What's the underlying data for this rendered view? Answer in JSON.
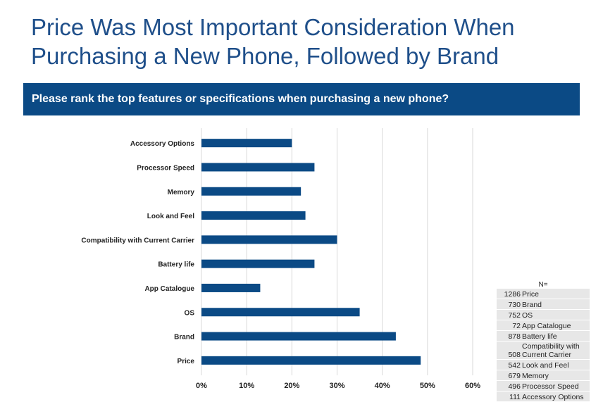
{
  "title": "Price Was Most Important Consideration When Purchasing a New Phone, Followed by Brand",
  "question": "Please rank the top features or specifications when purchasing a new phone?",
  "colors": {
    "bar": "#0b4a85",
    "banner": "#0b4a85",
    "title": "#1f4f8a",
    "grid": "#d9d9d9"
  },
  "chart_data": {
    "type": "bar",
    "orientation": "horizontal",
    "categories": [
      "Accessory Options",
      "Processor Speed",
      "Memory",
      "Look and Feel",
      "Compatibility with Current Carrier",
      "Battery life",
      "App Catalogue",
      "OS",
      "Brand",
      "Price"
    ],
    "values": [
      20,
      25,
      22,
      23,
      30,
      25,
      13,
      35,
      43,
      48.5
    ],
    "xlim": [
      0,
      60
    ],
    "xticks": [
      "0%",
      "10%",
      "20%",
      "30%",
      "40%",
      "50%",
      "60%"
    ],
    "grid": true
  },
  "n_table": {
    "header": "N=",
    "rows": [
      {
        "n": "1286",
        "label": "Price"
      },
      {
        "n": "730",
        "label": "Brand"
      },
      {
        "n": "752",
        "label": "OS"
      },
      {
        "n": "72",
        "label": "App Catalogue"
      },
      {
        "n": "878",
        "label": "Battery life"
      },
      {
        "n": "508",
        "label": "Compatibility with Current Carrier"
      },
      {
        "n": "542",
        "label": "Look and Feel"
      },
      {
        "n": "679",
        "label": "Memory"
      },
      {
        "n": "496",
        "label": "Processor Speed"
      },
      {
        "n": "111",
        "label": "Accessory Options"
      }
    ]
  }
}
